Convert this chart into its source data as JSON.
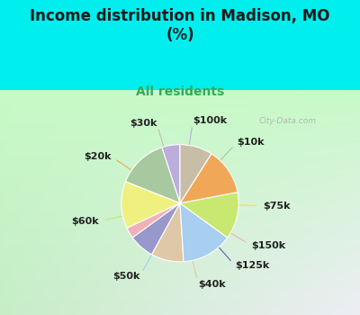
{
  "title": "Income distribution in Madison, MO\n(%)",
  "subtitle": "All residents",
  "title_color": "#1a1a1a",
  "subtitle_color": "#33aa55",
  "background_top_color": "#00eeee",
  "chart_bg_color": "#e0f4ec",
  "watermark": "City-Data.com",
  "labels": [
    "$100k",
    "$10k",
    "$75k",
    "$150k",
    "$125k",
    "$40k",
    "$50k",
    "$60k",
    "$20k",
    "$30k"
  ],
  "sizes": [
    5,
    14,
    13,
    3,
    7,
    9,
    14,
    13,
    13,
    9
  ],
  "colors": [
    "#bbaedd",
    "#a8c8a0",
    "#f0f080",
    "#f0b0b8",
    "#9898cc",
    "#dfc8a8",
    "#a8cef0",
    "#c8e870",
    "#f0a858",
    "#c8bea8"
  ],
  "startangle": 90,
  "label_fontsize": 8,
  "label_color": "#222222",
  "line_colors": [
    "#bbaedd",
    "#a8c8a0",
    "#e8e060",
    "#f0b0b8",
    "#6060aa",
    "#dfc8a8",
    "#a8cef0",
    "#c8e870",
    "#f0a858",
    "#c8bea8"
  ]
}
